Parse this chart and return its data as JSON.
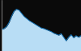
{
  "x": [
    0,
    1,
    2,
    3,
    4,
    5,
    6,
    7,
    8,
    9,
    10,
    11,
    12,
    13,
    14,
    15,
    16,
    17,
    18,
    19,
    20,
    21,
    22,
    23,
    24,
    25,
    26,
    27,
    28,
    29,
    30,
    31,
    32
  ],
  "y": [
    42,
    44,
    48,
    56,
    68,
    78,
    82,
    80,
    74,
    68,
    64,
    60,
    57,
    54,
    51,
    48,
    45,
    44,
    42,
    40,
    38,
    35,
    33,
    31,
    34,
    27,
    20,
    27,
    32,
    26,
    30,
    27,
    30
  ],
  "line_color": "#1777bb",
  "fill_color": "#b8ddf5",
  "background_color": "#0a0a0a",
  "ylim": [
    0,
    100
  ],
  "xlim": [
    0,
    32
  ],
  "figsize": [
    1.0,
    0.64
  ],
  "dpi": 100,
  "left_line_color": "#aaaaaa"
}
